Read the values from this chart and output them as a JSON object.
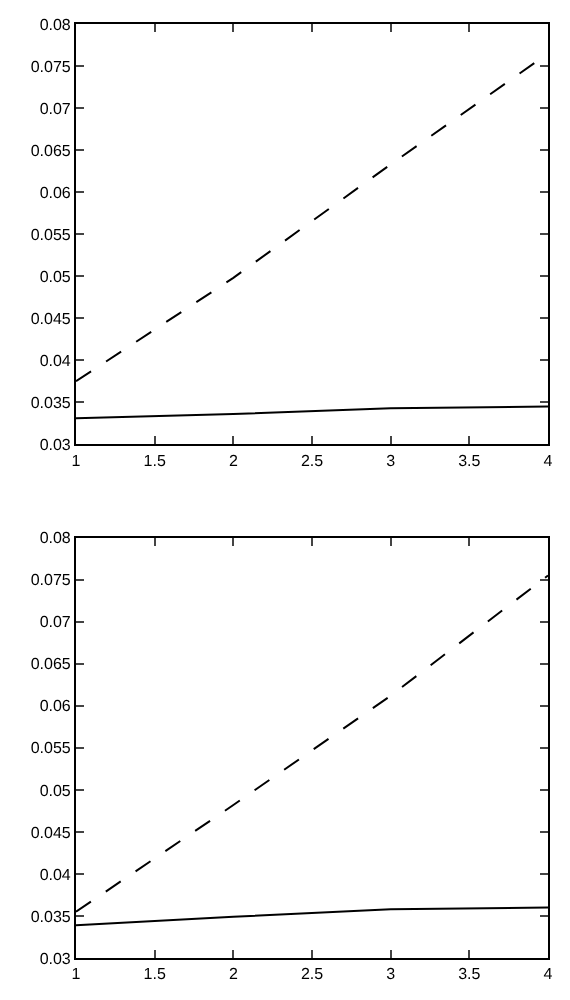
{
  "chart_data": [
    {
      "type": "line",
      "x": [
        1,
        2,
        3,
        4
      ],
      "xlim": [
        1,
        4
      ],
      "ylim": [
        0.03,
        0.08
      ],
      "xticks": [
        1,
        1.5,
        2,
        2.5,
        3,
        3.5,
        4
      ],
      "yticks": [
        0.03,
        0.035,
        0.04,
        0.045,
        0.05,
        0.055,
        0.06,
        0.065,
        0.07,
        0.075,
        0.08
      ],
      "marker": "none",
      "series": [
        {
          "color": "#000000",
          "line_style": "dashed",
          "values": [
            0.0375,
            0.0498,
            0.0633,
            0.0765
          ]
        },
        {
          "color": "#000000",
          "line_style": "solid",
          "values": [
            0.0331,
            0.0336,
            0.0343,
            0.0345
          ]
        }
      ]
    },
    {
      "type": "line",
      "x": [
        1,
        2,
        3,
        4
      ],
      "xlim": [
        1,
        4
      ],
      "ylim": [
        0.03,
        0.08
      ],
      "xticks": [
        1,
        1.5,
        2,
        2.5,
        3,
        3.5,
        4
      ],
      "yticks": [
        0.03,
        0.035,
        0.04,
        0.045,
        0.05,
        0.055,
        0.06,
        0.065,
        0.07,
        0.075,
        0.08
      ],
      "marker": "none",
      "series": [
        {
          "color": "#000000",
          "line_style": "dashed",
          "values": [
            0.0355,
            0.0482,
            0.0612,
            0.0755
          ]
        },
        {
          "color": "#000000",
          "line_style": "solid",
          "values": [
            0.0339,
            0.0349,
            0.0358,
            0.036
          ]
        }
      ]
    }
  ]
}
